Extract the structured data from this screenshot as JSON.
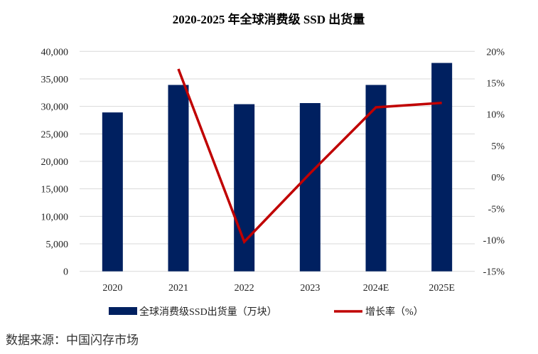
{
  "chart_data": {
    "type": "bar",
    "title": "2020-2025 年全球消费级 SSD 出货量",
    "categories": [
      "2020",
      "2021",
      "2022",
      "2023",
      "2024E",
      "2025E"
    ],
    "series": [
      {
        "name": "全球消费级SSD出货量（万块）",
        "type": "bar",
        "axis": "left",
        "color": "#002060",
        "values": [
          28900,
          33900,
          30400,
          30600,
          33900,
          37900
        ]
      },
      {
        "name": "增长率（%）",
        "type": "line",
        "axis": "right",
        "color": "#C00000",
        "values": [
          null,
          17.2,
          -10.3,
          0.6,
          11.1,
          11.8
        ]
      }
    ],
    "yleft": {
      "lim": [
        0,
        40000
      ],
      "ticks": [
        "0",
        "5,000",
        "10,000",
        "15,000",
        "20,000",
        "25,000",
        "30,000",
        "35,000",
        "40,000"
      ]
    },
    "yright": {
      "lim": [
        -15,
        20
      ],
      "ticks": [
        "-15%",
        "-10%",
        "-5%",
        "0%",
        "5%",
        "10%",
        "15%",
        "20%"
      ]
    },
    "grid": true,
    "legend": "bottom"
  },
  "source": "数据来源：中国闪存市场"
}
